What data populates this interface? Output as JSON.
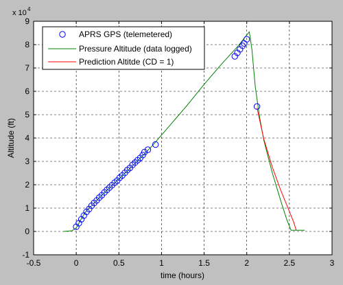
{
  "chart_data": {
    "type": "line",
    "title": "",
    "xlabel": "time (hours)",
    "ylabel": "Altitude (ft)",
    "xlim": [
      -0.5,
      3
    ],
    "ylim": [
      -1,
      9
    ],
    "y_exponent_label": "x 10",
    "y_exponent_power": "4",
    "x_ticks": [
      -0.5,
      0,
      0.5,
      1,
      1.5,
      2,
      2.5,
      3
    ],
    "x_tick_labels": [
      "-0.5",
      "0",
      "0.5",
      "1",
      "1.5",
      "2",
      "2.5",
      "3"
    ],
    "y_ticks": [
      -1,
      0,
      1,
      2,
      3,
      4,
      5,
      6,
      7,
      8,
      9
    ],
    "y_tick_labels": [
      "-1",
      "0",
      "1",
      "2",
      "3",
      "4",
      "5",
      "6",
      "7",
      "8",
      "9"
    ],
    "grid": true,
    "grid_style": "dashed",
    "legend_position": "top-left",
    "colors": {
      "figure_background": "#c0c0c0",
      "axes_background": "#ffffff",
      "gps": "#0000ff",
      "pressure": "#008000",
      "prediction": "#ff0000"
    },
    "series": [
      {
        "name": "APRS GPS (telemetered)",
        "style": "markers",
        "marker": "circle",
        "x": [
          0.0,
          0.03,
          0.06,
          0.09,
          0.12,
          0.15,
          0.18,
          0.21,
          0.24,
          0.27,
          0.3,
          0.33,
          0.36,
          0.39,
          0.42,
          0.45,
          0.48,
          0.51,
          0.54,
          0.57,
          0.6,
          0.63,
          0.66,
          0.69,
          0.72,
          0.75,
          0.78,
          0.8,
          0.84,
          0.93,
          1.86,
          1.89,
          1.92,
          1.95,
          1.97,
          2.0,
          2.12
        ],
        "y": [
          0.2,
          0.35,
          0.52,
          0.68,
          0.84,
          0.96,
          1.1,
          1.22,
          1.33,
          1.45,
          1.55,
          1.67,
          1.78,
          1.88,
          1.98,
          2.09,
          2.18,
          2.3,
          2.4,
          2.51,
          2.63,
          2.72,
          2.85,
          2.95,
          3.05,
          3.15,
          3.27,
          3.4,
          3.5,
          3.72,
          7.5,
          7.65,
          7.8,
          7.95,
          8.05,
          8.23,
          5.35
        ]
      },
      {
        "name": "Pressure Altitude (data logged)",
        "style": "line",
        "x": [
          -0.15,
          -0.05,
          0.0,
          0.1,
          0.3,
          0.5,
          0.7,
          0.9,
          1.1,
          1.3,
          1.5,
          1.7,
          1.9,
          2.03,
          2.06,
          2.1,
          2.15,
          2.2,
          2.3,
          2.4,
          2.47,
          2.52,
          2.6,
          2.68
        ],
        "y": [
          0.0,
          0.03,
          0.15,
          0.8,
          1.55,
          2.25,
          2.95,
          3.7,
          4.55,
          5.4,
          6.3,
          7.15,
          7.95,
          8.55,
          7.8,
          6.2,
          4.9,
          3.9,
          2.5,
          1.3,
          0.5,
          0.05,
          0.05,
          0.05
        ]
      },
      {
        "name": "Prediction Altitde (CD = 1)",
        "style": "line",
        "x": [
          2.12,
          2.2,
          2.3,
          2.4,
          2.5,
          2.55,
          2.58
        ],
        "y": [
          5.3,
          3.95,
          2.75,
          1.75,
          0.85,
          0.4,
          0.05
        ]
      }
    ]
  }
}
